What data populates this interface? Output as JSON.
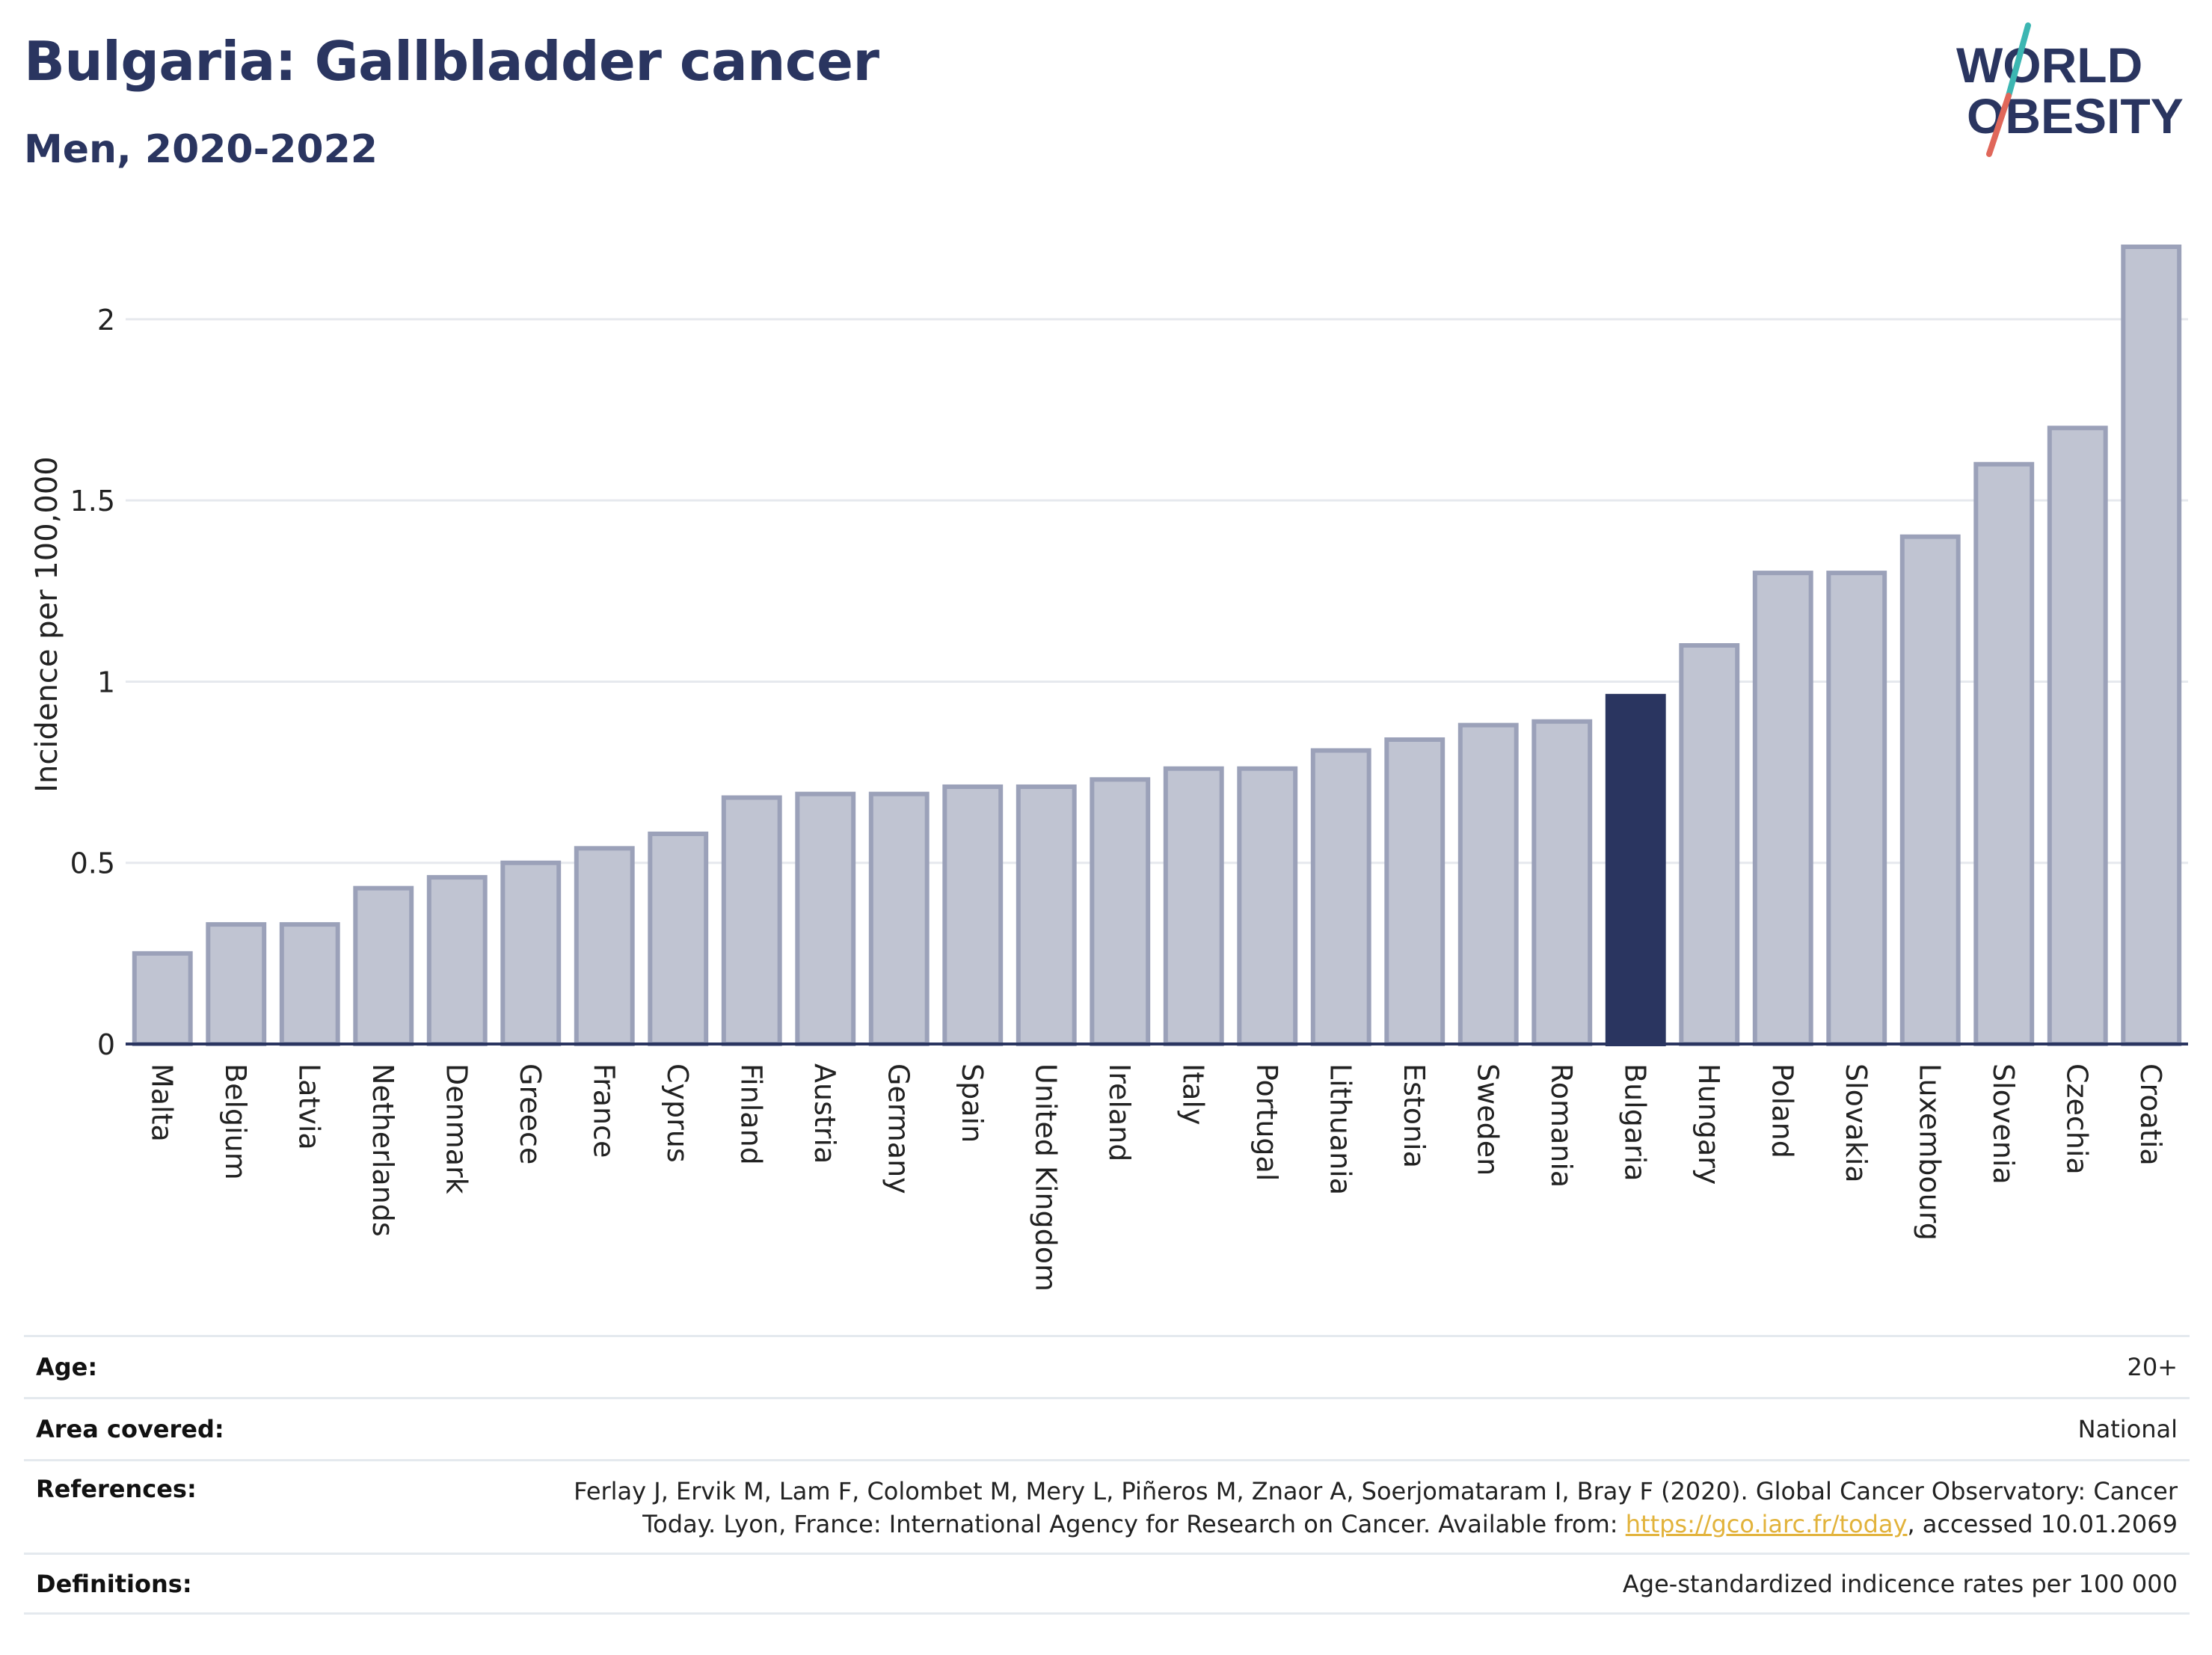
{
  "header": {
    "title": "Bulgaria: Gallbladder cancer",
    "subtitle": "Men, 2020-2022"
  },
  "logo": {
    "line1": "WORLD",
    "line2": "OBESITY",
    "colors": {
      "text": "#2a3560",
      "slash_top": "#3cb6b2",
      "slash_bottom": "#e0675a"
    }
  },
  "chart_data": {
    "type": "bar",
    "categories": [
      "Malta",
      "Belgium",
      "Latvia",
      "Netherlands",
      "Denmark",
      "Greece",
      "France",
      "Cyprus",
      "Finland",
      "Austria",
      "Germany",
      "Spain",
      "United Kingdom",
      "Ireland",
      "Italy",
      "Portugal",
      "Lithuania",
      "Estonia",
      "Sweden",
      "Romania",
      "Bulgaria",
      "Hungary",
      "Poland",
      "Slovakia",
      "Luxembourg",
      "Slovenia",
      "Czechia",
      "Croatia"
    ],
    "values": [
      0.25,
      0.33,
      0.33,
      0.43,
      0.46,
      0.5,
      0.54,
      0.58,
      0.68,
      0.69,
      0.69,
      0.71,
      0.71,
      0.73,
      0.76,
      0.76,
      0.81,
      0.84,
      0.88,
      0.89,
      0.96,
      1.1,
      1.3,
      1.3,
      1.4,
      1.6,
      1.7,
      2.2
    ],
    "highlight": "Bulgaria",
    "ylabel": "Incidence per 100,000",
    "ylim": [
      0,
      2.2
    ],
    "yticks": [
      0,
      0.5,
      1,
      1.5,
      2
    ],
    "ytick_labels": [
      "0",
      "0.5",
      "1",
      "1.5",
      "2"
    ],
    "grid": true,
    "colors": {
      "bar": "#c0c4d2",
      "bar_edge": "#9ba1b9",
      "highlight": "#2a3560",
      "grid": "#e6e9ee",
      "axis": "#2a3560"
    }
  },
  "meta": {
    "age_label": "Age:",
    "age_value": "20+",
    "area_label": "Area covered:",
    "area_value": "National",
    "references_label": "References:",
    "references_line1": "Ferlay J, Ervik M, Lam F, Colombet M, Mery L, Piñeros M, Znaor A, Soerjomataram I, Bray F (2020). Global Cancer Observatory: Cancer",
    "references_line2_pre": "Today. Lyon, France: International Agency for Research on Cancer. Available from: ",
    "references_link": "https://gco.iarc.fr/today",
    "references_line2_post": ", accessed 10.01.2069",
    "definitions_label": "Definitions:",
    "definitions_value": "Age-standardized indicence rates per 100 000"
  }
}
